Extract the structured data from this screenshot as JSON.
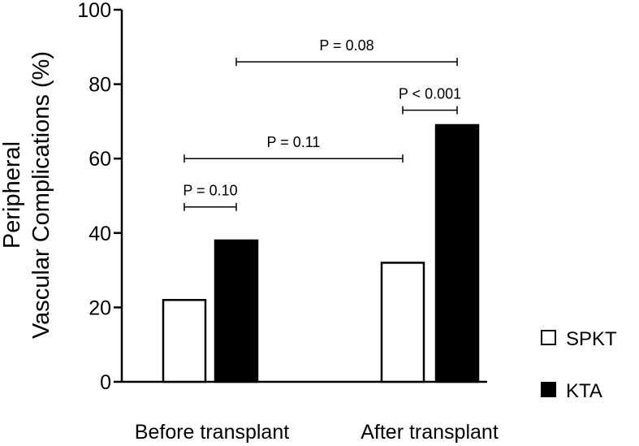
{
  "chart_data": {
    "type": "bar",
    "title": "",
    "xlabel": "",
    "ylabel_lines": [
      "Peripheral",
      "Vascular Complications (%)"
    ],
    "ylim": [
      0,
      100
    ],
    "yticks": [
      "0",
      "20",
      "40",
      "60",
      "80",
      "100"
    ],
    "categories": [
      "Before transplant",
      "After transplant"
    ],
    "series": [
      {
        "name": "SPKT",
        "values": [
          22,
          32
        ],
        "color": "#ffffff"
      },
      {
        "name": "KTA",
        "values": [
          38,
          69
        ],
        "color": "#000000"
      }
    ],
    "legend_position": "right",
    "grid": false,
    "annotations": [
      {
        "label": "P = 0.10",
        "from": "Before transplant SPKT",
        "to": "Before transplant KTA",
        "y": 47
      },
      {
        "label": "P = 0.11",
        "from": "Before transplant SPKT",
        "to": "After transplant SPKT",
        "y": 60
      },
      {
        "label": "P < 0.001",
        "from": "After transplant SPKT",
        "to": "After transplant KTA",
        "y": 73
      },
      {
        "label": "P = 0.08",
        "from": "Before transplant KTA",
        "to": "After transplant KTA",
        "y": 86
      }
    ]
  }
}
